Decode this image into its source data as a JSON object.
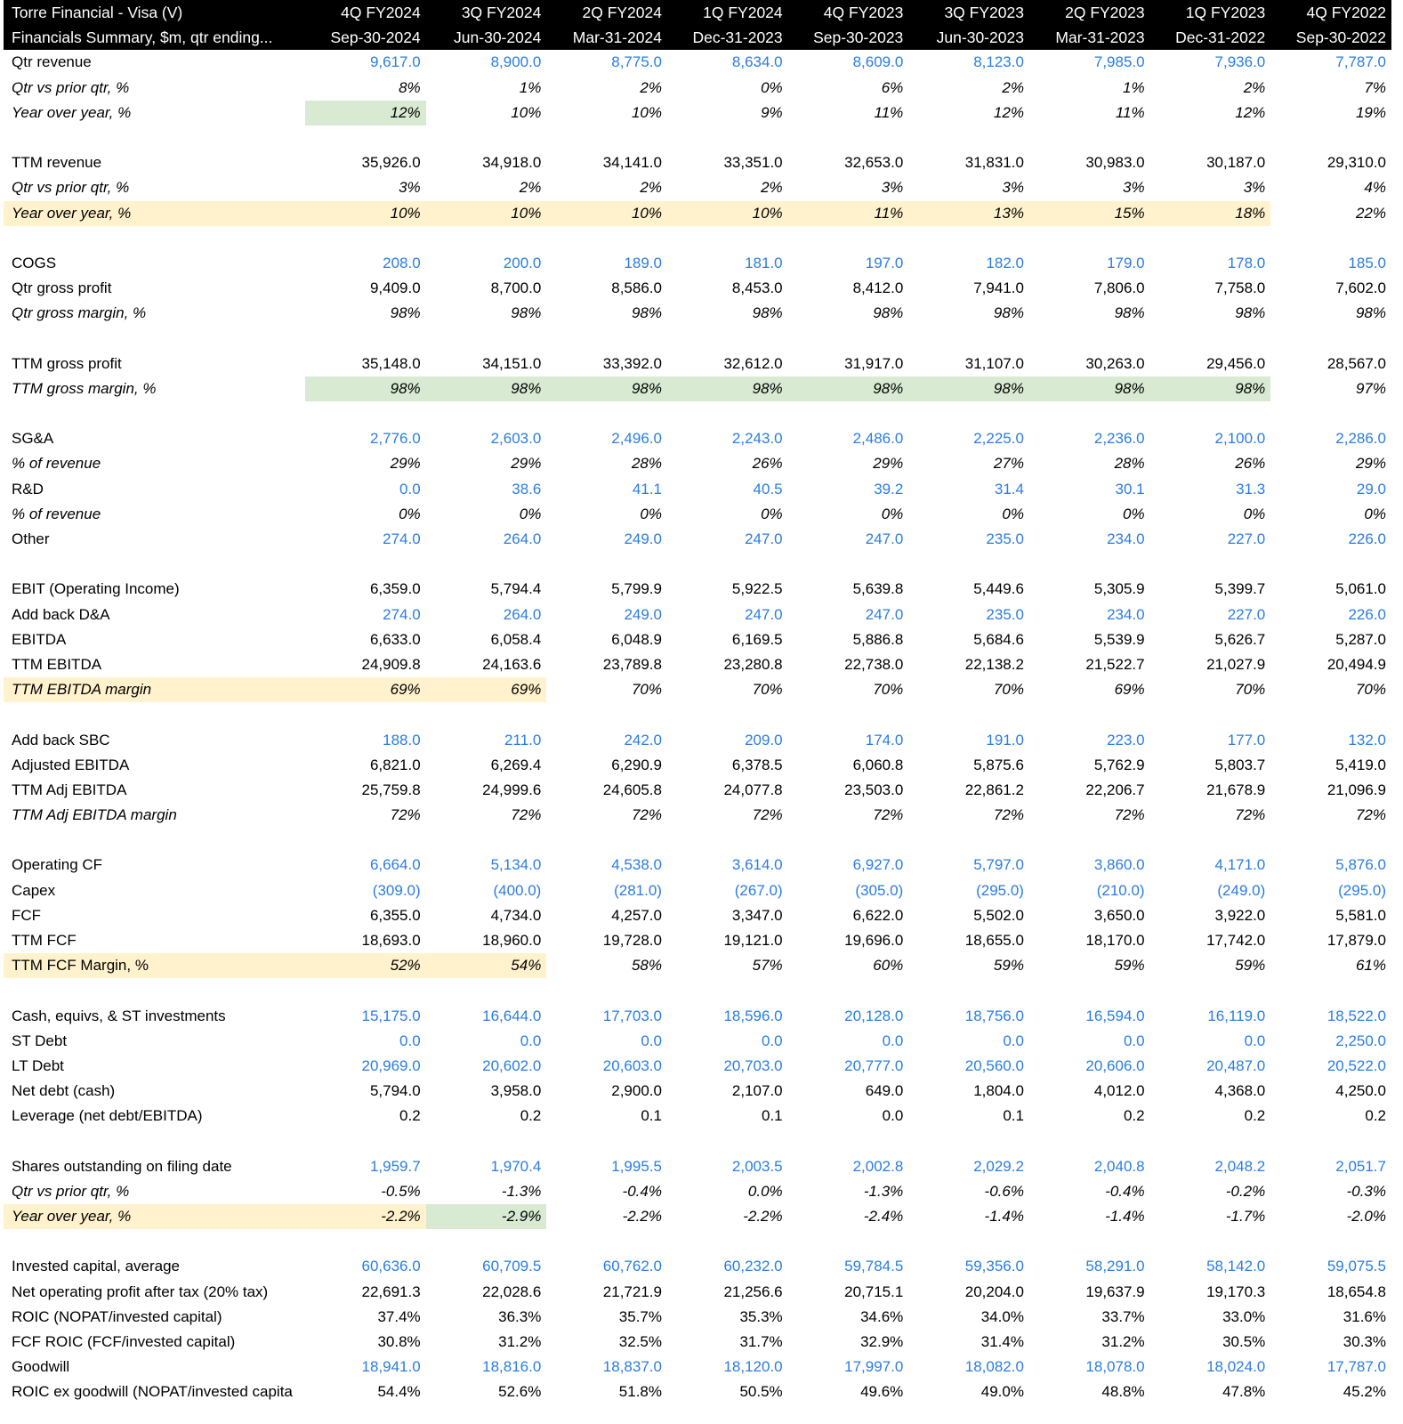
{
  "header": {
    "title": "Torre Financial - Visa (V)",
    "subtitle": "Financials Summary, $m, qtr ending...",
    "quarters": [
      "4Q FY2024",
      "3Q FY2024",
      "2Q FY2024",
      "1Q FY2024",
      "4Q FY2023",
      "3Q FY2023",
      "2Q FY2023",
      "1Q FY2023",
      "4Q FY2022"
    ],
    "dates": [
      "Sep-30-2024",
      "Jun-30-2024",
      "Mar-31-2024",
      "Dec-31-2023",
      "Sep-30-2023",
      "Jun-30-2023",
      "Mar-31-2023",
      "Dec-31-2022",
      "Sep-30-2022"
    ]
  },
  "colors": {
    "blue": "#2a7de1",
    "highlight_green": "#d9ead3",
    "highlight_yellow": "#fff2cc",
    "header_bg": "#000000"
  },
  "rows": [
    {
      "label": "Qtr revenue",
      "italic": false,
      "blue": true,
      "values": [
        "9,617.0",
        "8,900.0",
        "8,775.0",
        "8,634.0",
        "8,609.0",
        "8,123.0",
        "7,985.0",
        "7,936.0",
        "7,787.0"
      ]
    },
    {
      "label": "Qtr vs prior qtr, %",
      "italic": true,
      "values": [
        "8%",
        "1%",
        "2%",
        "0%",
        "6%",
        "2%",
        "1%",
        "2%",
        "7%"
      ]
    },
    {
      "label": "Year over year, %",
      "italic": true,
      "values": [
        "12%",
        "10%",
        "10%",
        "9%",
        "11%",
        "12%",
        "11%",
        "12%",
        "19%"
      ],
      "hl": {
        "0": "g"
      }
    },
    {
      "blank": true
    },
    {
      "label": "TTM revenue",
      "values": [
        "35,926.0",
        "34,918.0",
        "34,141.0",
        "33,351.0",
        "32,653.0",
        "31,831.0",
        "30,983.0",
        "30,187.0",
        "29,310.0"
      ]
    },
    {
      "label": "Qtr vs prior qtr, %",
      "italic": true,
      "values": [
        "3%",
        "2%",
        "2%",
        "2%",
        "3%",
        "3%",
        "3%",
        "3%",
        "4%"
      ]
    },
    {
      "label": "Year over year, %",
      "italic": true,
      "values": [
        "10%",
        "10%",
        "10%",
        "10%",
        "11%",
        "13%",
        "15%",
        "18%",
        "22%"
      ],
      "hl": {
        "label": "y",
        "0": "y",
        "1": "y",
        "2": "y",
        "3": "y",
        "4": "y",
        "5": "y",
        "6": "y",
        "7": "y"
      }
    },
    {
      "blank": true
    },
    {
      "label": "COGS",
      "blue": true,
      "values": [
        "208.0",
        "200.0",
        "189.0",
        "181.0",
        "197.0",
        "182.0",
        "179.0",
        "178.0",
        "185.0"
      ]
    },
    {
      "label": "Qtr gross profit",
      "values": [
        "9,409.0",
        "8,700.0",
        "8,586.0",
        "8,453.0",
        "8,412.0",
        "7,941.0",
        "7,806.0",
        "7,758.0",
        "7,602.0"
      ]
    },
    {
      "label": "Qtr gross margin, %",
      "italic": true,
      "values": [
        "98%",
        "98%",
        "98%",
        "98%",
        "98%",
        "98%",
        "98%",
        "98%",
        "98%"
      ]
    },
    {
      "blank": true
    },
    {
      "label": "TTM gross profit",
      "values": [
        "35,148.0",
        "34,151.0",
        "33,392.0",
        "32,612.0",
        "31,917.0",
        "31,107.0",
        "30,263.0",
        "29,456.0",
        "28,567.0"
      ]
    },
    {
      "label": "TTM gross margin, %",
      "italic": true,
      "values": [
        "98%",
        "98%",
        "98%",
        "98%",
        "98%",
        "98%",
        "98%",
        "98%",
        "97%"
      ],
      "hl": {
        "0": "g",
        "1": "g",
        "2": "g",
        "3": "g",
        "4": "g",
        "5": "g",
        "6": "g",
        "7": "g"
      }
    },
    {
      "blank": true
    },
    {
      "label": "SG&A",
      "blue": true,
      "values": [
        "2,776.0",
        "2,603.0",
        "2,496.0",
        "2,243.0",
        "2,486.0",
        "2,225.0",
        "2,236.0",
        "2,100.0",
        "2,286.0"
      ]
    },
    {
      "label": "% of revenue",
      "italic": true,
      "values": [
        "29%",
        "29%",
        "28%",
        "26%",
        "29%",
        "27%",
        "28%",
        "26%",
        "29%"
      ]
    },
    {
      "label": "R&D",
      "blue": true,
      "values": [
        "0.0",
        "38.6",
        "41.1",
        "40.5",
        "39.2",
        "31.4",
        "30.1",
        "31.3",
        "29.0"
      ]
    },
    {
      "label": "% of revenue",
      "italic": true,
      "values": [
        "0%",
        "0%",
        "0%",
        "0%",
        "0%",
        "0%",
        "0%",
        "0%",
        "0%"
      ]
    },
    {
      "label": "Other",
      "blue": true,
      "values": [
        "274.0",
        "264.0",
        "249.0",
        "247.0",
        "247.0",
        "235.0",
        "234.0",
        "227.0",
        "226.0"
      ]
    },
    {
      "blank": true
    },
    {
      "label": "EBIT (Operating Income)",
      "values": [
        "6,359.0",
        "5,794.4",
        "5,799.9",
        "5,922.5",
        "5,639.8",
        "5,449.6",
        "5,305.9",
        "5,399.7",
        "5,061.0"
      ]
    },
    {
      "label": "Add back D&A",
      "blue": true,
      "values": [
        "274.0",
        "264.0",
        "249.0",
        "247.0",
        "247.0",
        "235.0",
        "234.0",
        "227.0",
        "226.0"
      ]
    },
    {
      "label": "EBITDA",
      "values": [
        "6,633.0",
        "6,058.4",
        "6,048.9",
        "6,169.5",
        "5,886.8",
        "5,684.6",
        "5,539.9",
        "5,626.7",
        "5,287.0"
      ]
    },
    {
      "label": "TTM EBITDA",
      "values": [
        "24,909.8",
        "24,163.6",
        "23,789.8",
        "23,280.8",
        "22,738.0",
        "22,138.2",
        "21,522.7",
        "21,027.9",
        "20,494.9"
      ]
    },
    {
      "label": "TTM EBITDA margin",
      "italic": true,
      "values": [
        "69%",
        "69%",
        "70%",
        "70%",
        "70%",
        "70%",
        "69%",
        "70%",
        "70%"
      ],
      "hl": {
        "label": "y",
        "0": "y",
        "1": "y"
      }
    },
    {
      "blank": true
    },
    {
      "label": "Add back SBC",
      "blue": true,
      "values": [
        "188.0",
        "211.0",
        "242.0",
        "209.0",
        "174.0",
        "191.0",
        "223.0",
        "177.0",
        "132.0"
      ]
    },
    {
      "label": "Adjusted EBITDA",
      "values": [
        "6,821.0",
        "6,269.4",
        "6,290.9",
        "6,378.5",
        "6,060.8",
        "5,875.6",
        "5,762.9",
        "5,803.7",
        "5,419.0"
      ]
    },
    {
      "label": "TTM Adj EBITDA",
      "values": [
        "25,759.8",
        "24,999.6",
        "24,605.8",
        "24,077.8",
        "23,503.0",
        "22,861.2",
        "22,206.7",
        "21,678.9",
        "21,096.9"
      ]
    },
    {
      "label": "TTM Adj EBITDA margin",
      "italic": true,
      "values": [
        "72%",
        "72%",
        "72%",
        "72%",
        "72%",
        "72%",
        "72%",
        "72%",
        "72%"
      ]
    },
    {
      "blank": true
    },
    {
      "label": "Operating CF",
      "blue": true,
      "values": [
        "6,664.0",
        "5,134.0",
        "4,538.0",
        "3,614.0",
        "6,927.0",
        "5,797.0",
        "3,860.0",
        "4,171.0",
        "5,876.0"
      ]
    },
    {
      "label": "Capex",
      "blue": true,
      "values": [
        "(309.0)",
        "(400.0)",
        "(281.0)",
        "(267.0)",
        "(305.0)",
        "(295.0)",
        "(210.0)",
        "(249.0)",
        "(295.0)"
      ]
    },
    {
      "label": "FCF",
      "values": [
        "6,355.0",
        "4,734.0",
        "4,257.0",
        "3,347.0",
        "6,622.0",
        "5,502.0",
        "3,650.0",
        "3,922.0",
        "5,581.0"
      ]
    },
    {
      "label": "TTM FCF",
      "values": [
        "18,693.0",
        "18,960.0",
        "19,728.0",
        "19,121.0",
        "19,696.0",
        "18,655.0",
        "18,170.0",
        "17,742.0",
        "17,879.0"
      ]
    },
    {
      "label": "TTM FCF Margin, %",
      "italic": "values",
      "values": [
        "52%",
        "54%",
        "58%",
        "57%",
        "60%",
        "59%",
        "59%",
        "59%",
        "61%"
      ],
      "hl": {
        "label": "y",
        "0": "y",
        "1": "y"
      }
    },
    {
      "blank": true
    },
    {
      "label": "Cash, equivs, & ST investments",
      "blue": true,
      "values": [
        "15,175.0",
        "16,644.0",
        "17,703.0",
        "18,596.0",
        "20,128.0",
        "18,756.0",
        "16,594.0",
        "16,119.0",
        "18,522.0"
      ]
    },
    {
      "label": "ST Debt",
      "blue": true,
      "values": [
        "0.0",
        "0.0",
        "0.0",
        "0.0",
        "0.0",
        "0.0",
        "0.0",
        "0.0",
        "2,250.0"
      ]
    },
    {
      "label": "LT Debt",
      "blue": true,
      "values": [
        "20,969.0",
        "20,602.0",
        "20,603.0",
        "20,703.0",
        "20,777.0",
        "20,560.0",
        "20,606.0",
        "20,487.0",
        "20,522.0"
      ]
    },
    {
      "label": "Net debt (cash)",
      "values": [
        "5,794.0",
        "3,958.0",
        "2,900.0",
        "2,107.0",
        "649.0",
        "1,804.0",
        "4,012.0",
        "4,368.0",
        "4,250.0"
      ]
    },
    {
      "label": "Leverage (net debt/EBITDA)",
      "values": [
        "0.2",
        "0.2",
        "0.1",
        "0.1",
        "0.0",
        "0.1",
        "0.2",
        "0.2",
        "0.2"
      ]
    },
    {
      "blank": true
    },
    {
      "label": "Shares outstanding on filing date",
      "blue": true,
      "values": [
        "1,959.7",
        "1,970.4",
        "1,995.5",
        "2,003.5",
        "2,002.8",
        "2,029.2",
        "2,040.8",
        "2,048.2",
        "2,051.7"
      ]
    },
    {
      "label": "Qtr vs prior qtr, %",
      "italic": true,
      "values": [
        "-0.5%",
        "-1.3%",
        "-0.4%",
        "0.0%",
        "-1.3%",
        "-0.6%",
        "-0.4%",
        "-0.2%",
        "-0.3%"
      ]
    },
    {
      "label": "Year over year, %",
      "italic": true,
      "values": [
        "-2.2%",
        "-2.9%",
        "-2.2%",
        "-2.2%",
        "-2.4%",
        "-1.4%",
        "-1.4%",
        "-1.7%",
        "-2.0%"
      ],
      "hl": {
        "label": "y",
        "0": "y",
        "1": "g"
      }
    },
    {
      "blank": true
    },
    {
      "label": "Invested capital, average",
      "blue": true,
      "values": [
        "60,636.0",
        "60,709.5",
        "60,762.0",
        "60,232.0",
        "59,784.5",
        "59,356.0",
        "58,291.0",
        "58,142.0",
        "59,075.5"
      ]
    },
    {
      "label": "Net operating profit after tax (20% tax)",
      "values": [
        "22,691.3",
        "22,028.6",
        "21,721.9",
        "21,256.6",
        "20,715.1",
        "20,204.0",
        "19,637.9",
        "19,170.3",
        "18,654.8"
      ]
    },
    {
      "label": "ROIC (NOPAT/invested capital)",
      "values": [
        "37.4%",
        "36.3%",
        "35.7%",
        "35.3%",
        "34.6%",
        "34.0%",
        "33.7%",
        "33.0%",
        "31.6%"
      ]
    },
    {
      "label": "FCF ROIC (FCF/invested capital)",
      "values": [
        "30.8%",
        "31.2%",
        "32.5%",
        "31.7%",
        "32.9%",
        "31.4%",
        "31.2%",
        "30.5%",
        "30.3%"
      ]
    },
    {
      "label": "Goodwill",
      "blue": true,
      "values": [
        "18,941.0",
        "18,816.0",
        "18,837.0",
        "18,120.0",
        "17,997.0",
        "18,082.0",
        "18,078.0",
        "18,024.0",
        "17,787.0"
      ]
    },
    {
      "label": "ROIC ex goodwill (NOPAT/invested capita",
      "values": [
        "54.4%",
        "52.6%",
        "51.8%",
        "50.5%",
        "49.6%",
        "49.0%",
        "48.8%",
        "47.8%",
        "45.2%"
      ]
    }
  ]
}
